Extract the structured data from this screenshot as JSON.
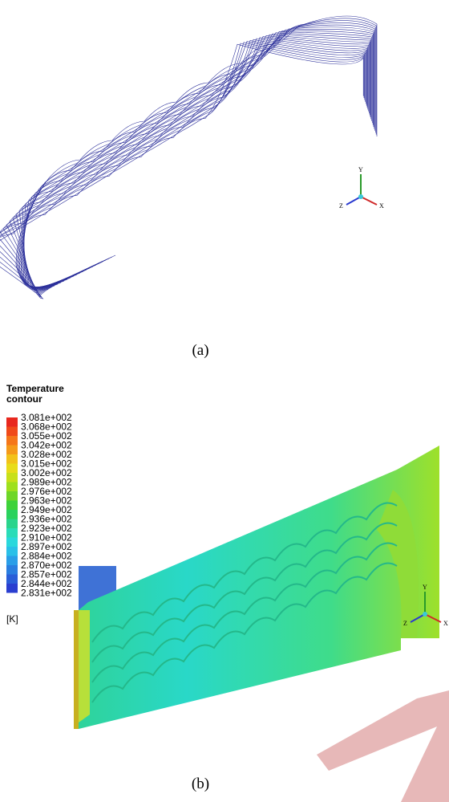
{
  "figure_a": {
    "caption": "(a)",
    "axes": {
      "y": "Y",
      "z": "Z",
      "x": "X"
    }
  },
  "figure_b": {
    "caption": "(b)",
    "legend": {
      "title": "Temperature contour",
      "labels": [
        "3.081e+002",
        "3.068e+002",
        "3.055e+002",
        "3.042e+002",
        "3.028e+002",
        "3.015e+002",
        "3.002e+002",
        "2.989e+002",
        "2.976e+002",
        "2.963e+002",
        "2.949e+002",
        "2.936e+002",
        "2.923e+002",
        "2.910e+002",
        "2.897e+002",
        "2.884e+002",
        "2.870e+002",
        "2.857e+002",
        "2.844e+002",
        "2.831e+002"
      ],
      "unit": "[K]"
    },
    "axes": {
      "y": "Y",
      "z": "Z",
      "x": "X"
    }
  }
}
